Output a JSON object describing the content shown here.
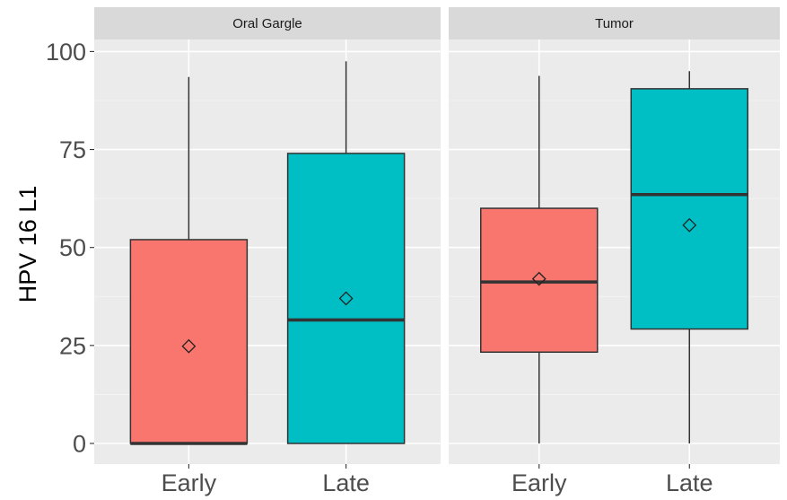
{
  "chart_data": {
    "type": "boxplot",
    "ylabel": "HPV 16 L1",
    "ylim": [
      -5,
      105
    ],
    "yticks": [
      0,
      25,
      50,
      75,
      100
    ],
    "categories": [
      "Early",
      "Late"
    ],
    "fill_colors": {
      "Early": "#F8766D",
      "Late": "#00BFC4"
    },
    "grid": true,
    "legend": "none",
    "panels": [
      {
        "strip_label": "Oral Gargle",
        "boxes": [
          {
            "category": "Early",
            "whisker_low": 0,
            "q1": 0,
            "median": 0,
            "q3": 52,
            "whisker_high": 93.5,
            "mean": 24.8
          },
          {
            "category": "Late",
            "whisker_low": 0,
            "q1": 0,
            "median": 31.5,
            "q3": 74,
            "whisker_high": 97.5,
            "mean": 37
          }
        ]
      },
      {
        "strip_label": "Tumor",
        "boxes": [
          {
            "category": "Early",
            "whisker_low": 0,
            "q1": 23.3,
            "median": 41.2,
            "q3": 60,
            "whisker_high": 93.8,
            "mean": 42
          },
          {
            "category": "Late",
            "whisker_low": 0,
            "q1": 29.2,
            "median": 63.5,
            "q3": 90.5,
            "whisker_high": 95,
            "mean": 55.7
          }
        ]
      }
    ]
  }
}
